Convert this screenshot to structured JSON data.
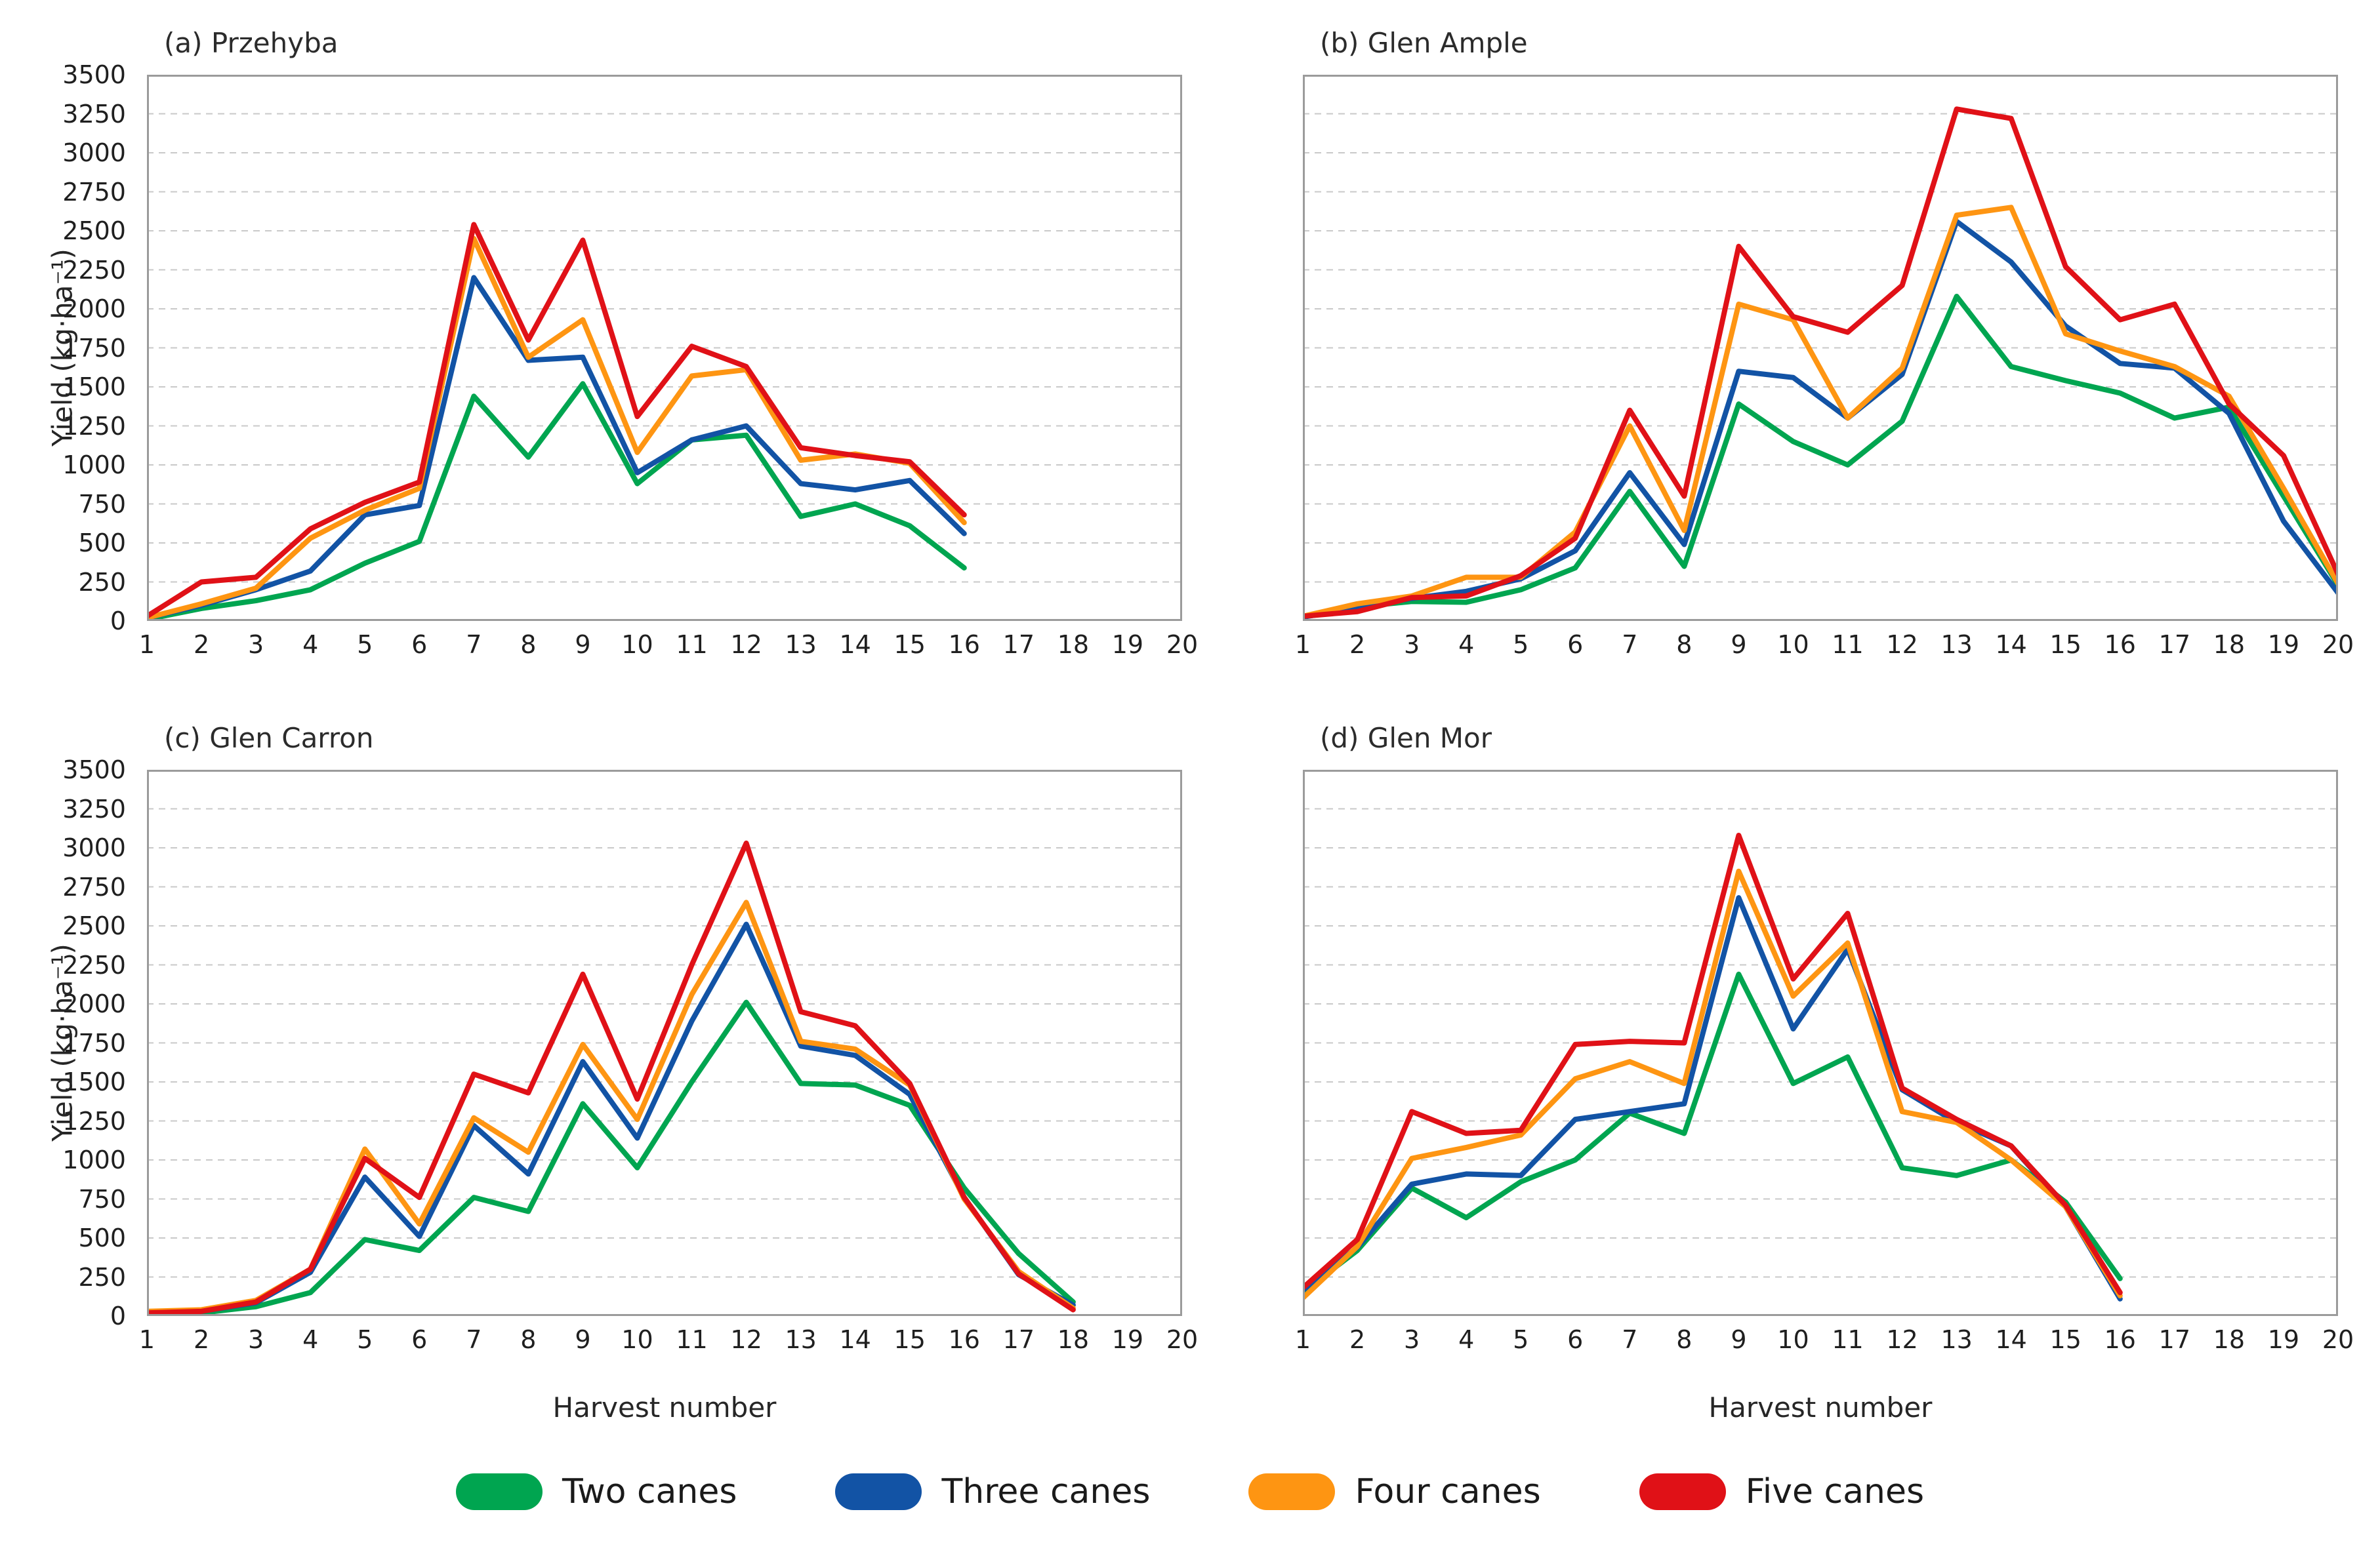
{
  "figure": {
    "y_axis_label": "Yield (kg·ha⁻¹)",
    "x_axis_label": "Harvest number",
    "background_color": "#ffffff",
    "text_color": "#262626",
    "grid_color": "#c9c9c9",
    "border_color": "#9b9b9b"
  },
  "legend": {
    "items": [
      {
        "label": "Two canes",
        "color": "#00a550"
      },
      {
        "label": "Three canes",
        "color": "#1253a5"
      },
      {
        "label": "Four canes",
        "color": "#fe9512"
      },
      {
        "label": "Five canes",
        "color": "#e01117"
      }
    ]
  },
  "chart_data": [
    {
      "type": "line",
      "title": "(a) Przehyba",
      "xlabel": "",
      "ylabel": "Yield (kg·ha⁻¹)",
      "xlim": [
        1,
        20
      ],
      "ylim": [
        0,
        3500
      ],
      "x_ticks": [
        1,
        2,
        3,
        4,
        5,
        6,
        7,
        8,
        9,
        10,
        11,
        12,
        13,
        14,
        15,
        16,
        17,
        18,
        19,
        20
      ],
      "y_tick_step": 250,
      "grid": "horizontal-dashed",
      "legend_position": "figure-bottom",
      "x": [
        1,
        2,
        3,
        4,
        5,
        6,
        7,
        8,
        9,
        10,
        11,
        12,
        13,
        14,
        15,
        16
      ],
      "series": [
        {
          "name": "Two canes",
          "values": [
            10,
            80,
            130,
            200,
            370,
            510,
            1440,
            1050,
            1520,
            880,
            1160,
            1190,
            670,
            750,
            610,
            340
          ]
        },
        {
          "name": "Three canes",
          "values": [
            20,
            100,
            200,
            320,
            680,
            740,
            2200,
            1670,
            1690,
            950,
            1160,
            1250,
            880,
            840,
            900,
            560
          ]
        },
        {
          "name": "Four canes",
          "values": [
            20,
            110,
            210,
            530,
            710,
            850,
            2450,
            1690,
            1930,
            1080,
            1570,
            1610,
            1030,
            1070,
            1010,
            630
          ]
        },
        {
          "name": "Five canes",
          "values": [
            30,
            250,
            280,
            590,
            760,
            890,
            2540,
            1800,
            2440,
            1310,
            1760,
            1630,
            1110,
            1060,
            1020,
            680
          ]
        }
      ]
    },
    {
      "type": "line",
      "title": "(b) Glen Ample",
      "xlabel": "",
      "ylabel": "",
      "xlim": [
        1,
        20
      ],
      "ylim": [
        0,
        3500
      ],
      "x_ticks": [
        1,
        2,
        3,
        4,
        5,
        6,
        7,
        8,
        9,
        10,
        11,
        12,
        13,
        14,
        15,
        16,
        17,
        18,
        19,
        20
      ],
      "y_tick_step": 250,
      "grid": "horizontal-dashed",
      "x": [
        1,
        2,
        3,
        4,
        5,
        6,
        7,
        8,
        9,
        10,
        11,
        12,
        13,
        14,
        15,
        16,
        17,
        18,
        19,
        20
      ],
      "series": [
        {
          "name": "Two canes",
          "values": [
            25,
            90,
            125,
            120,
            200,
            340,
            830,
            350,
            1390,
            1150,
            1000,
            1280,
            2080,
            1630,
            1540,
            1460,
            1300,
            1370,
            800,
            230
          ]
        },
        {
          "name": "Three canes",
          "values": [
            25,
            80,
            145,
            190,
            270,
            450,
            950,
            490,
            1600,
            1560,
            1300,
            1580,
            2560,
            2300,
            1890,
            1650,
            1620,
            1330,
            640,
            180
          ]
        },
        {
          "name": "Four canes",
          "values": [
            30,
            110,
            160,
            280,
            280,
            570,
            1250,
            580,
            2030,
            1930,
            1300,
            1620,
            2600,
            2650,
            1840,
            1730,
            1630,
            1440,
            850,
            240
          ]
        },
        {
          "name": "Five canes",
          "values": [
            30,
            60,
            150,
            160,
            290,
            530,
            1350,
            800,
            2400,
            1950,
            1850,
            2150,
            3280,
            3220,
            2270,
            1930,
            2030,
            1390,
            1060,
            300
          ]
        }
      ]
    },
    {
      "type": "line",
      "title": "(c) Glen Carron",
      "xlabel": "Harvest number",
      "ylabel": "Yield (kg·ha⁻¹)",
      "xlim": [
        1,
        20
      ],
      "ylim": [
        0,
        3500
      ],
      "x_ticks": [
        1,
        2,
        3,
        4,
        5,
        6,
        7,
        8,
        9,
        10,
        11,
        12,
        13,
        14,
        15,
        16,
        17,
        18,
        19,
        20
      ],
      "y_tick_step": 250,
      "grid": "horizontal-dashed",
      "x": [
        1,
        2,
        3,
        4,
        5,
        6,
        7,
        8,
        9,
        10,
        11,
        12,
        13,
        14,
        15,
        16,
        17,
        18
      ],
      "series": [
        {
          "name": "Two canes",
          "values": [
            15,
            20,
            60,
            150,
            490,
            420,
            760,
            670,
            1360,
            950,
            1500,
            2010,
            1490,
            1480,
            1350,
            820,
            400,
            90
          ]
        },
        {
          "name": "Three canes",
          "values": [
            25,
            30,
            85,
            280,
            890,
            510,
            1220,
            910,
            1630,
            1140,
            1890,
            2510,
            1730,
            1670,
            1420,
            760,
            265,
            70
          ]
        },
        {
          "name": "Four canes",
          "values": [
            30,
            40,
            100,
            300,
            1070,
            590,
            1270,
            1050,
            1740,
            1260,
            2060,
            2650,
            1760,
            1710,
            1480,
            750,
            285,
            50
          ]
        },
        {
          "name": "Five canes",
          "values": [
            20,
            30,
            90,
            300,
            1010,
            760,
            1550,
            1430,
            2190,
            1390,
            2250,
            3030,
            1950,
            1860,
            1490,
            760,
            270,
            40
          ]
        }
      ]
    },
    {
      "type": "line",
      "title": "(d) Glen Mor",
      "xlabel": "Harvest number",
      "ylabel": "",
      "xlim": [
        1,
        20
      ],
      "ylim": [
        0,
        3500
      ],
      "x_ticks": [
        1,
        2,
        3,
        4,
        5,
        6,
        7,
        8,
        9,
        10,
        11,
        12,
        13,
        14,
        15,
        16,
        17,
        18,
        19,
        20
      ],
      "y_tick_step": 250,
      "grid": "horizontal-dashed",
      "x": [
        1,
        2,
        3,
        4,
        5,
        6,
        7,
        8,
        9,
        10,
        11,
        12,
        13,
        14,
        15,
        16
      ],
      "series": [
        {
          "name": "Two canes",
          "values": [
            155,
            420,
            820,
            630,
            860,
            1000,
            1300,
            1170,
            2190,
            1490,
            1660,
            950,
            900,
            1000,
            730,
            240
          ]
        },
        {
          "name": "Three canes",
          "values": [
            165,
            440,
            845,
            910,
            900,
            1260,
            1310,
            1360,
            2680,
            1840,
            2350,
            1450,
            1240,
            1090,
            700,
            110
          ]
        },
        {
          "name": "Four canes",
          "values": [
            115,
            445,
            1010,
            1080,
            1160,
            1520,
            1630,
            1490,
            2850,
            2050,
            2390,
            1310,
            1240,
            1000,
            700,
            130
          ]
        },
        {
          "name": "Five canes",
          "values": [
            180,
            490,
            1310,
            1170,
            1190,
            1740,
            1760,
            1750,
            3080,
            2160,
            2580,
            1460,
            1260,
            1090,
            710,
            150
          ]
        }
      ]
    }
  ]
}
